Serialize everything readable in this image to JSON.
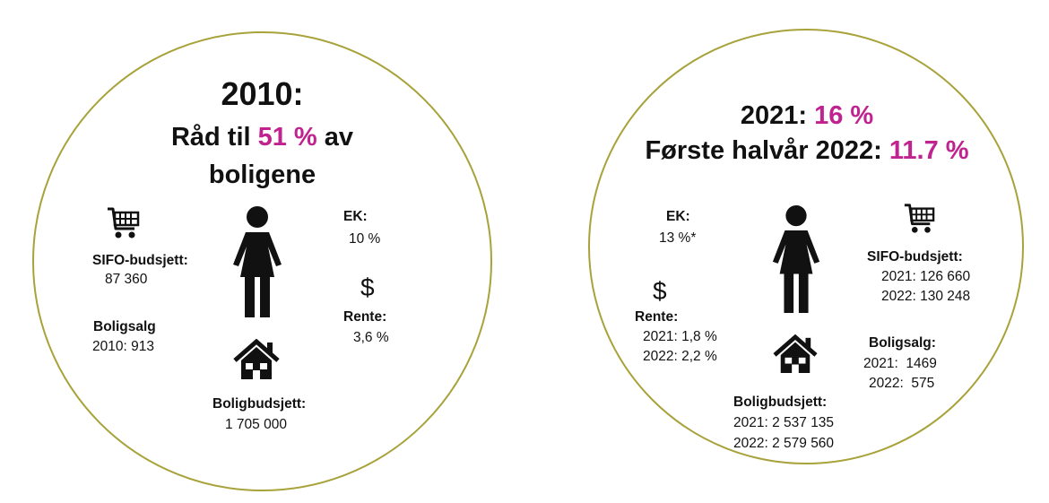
{
  "colors": {
    "accent": "#c0228f",
    "circle_border": "#a8a23a",
    "text": "#111111"
  },
  "left": {
    "year_heading": "2010:",
    "advice_prefix": "Råd til ",
    "advice_pct": "51 %",
    "advice_suffix": " av",
    "advice_line2": "boligene",
    "sifo_label": "SIFO-budsjett:",
    "sifo_value": "87 360",
    "sales_label": "Boligsalg",
    "sales_value": "2010: 913",
    "ek_label": "EK:",
    "ek_value": "10 %",
    "rate_label": "Rente:",
    "rate_value": "3,6 %",
    "budget_label": "Boligbudsjett:",
    "budget_value": "1 705 000",
    "icons": [
      "cart-icon",
      "person-icon",
      "dollar-icon",
      "house-icon"
    ]
  },
  "right": {
    "line1_prefix": "2021: ",
    "line1_pct": "16 %",
    "line2_prefix": "Første halvår 2022: ",
    "line2_pct": "11.7 %",
    "ek_label": "EK:",
    "ek_value": "13 %*",
    "rate_label": "Rente:",
    "rate_2021": "2021: 1,8 %",
    "rate_2022": "2022: 2,2 %",
    "sifo_label": "SIFO-budsjett:",
    "sifo_2021": "2021: 126 660",
    "sifo_2022": "2022: 130 248",
    "sales_label": "Boligsalg:",
    "sales_2021": "2021:  1469",
    "sales_2022": "2022:  575",
    "budget_label": "Boligbudsjett:",
    "budget_2021": "2021: 2 537 135",
    "budget_2022": "2022: 2 579 560",
    "icons": [
      "cart-icon",
      "person-icon",
      "dollar-icon",
      "house-icon"
    ]
  }
}
